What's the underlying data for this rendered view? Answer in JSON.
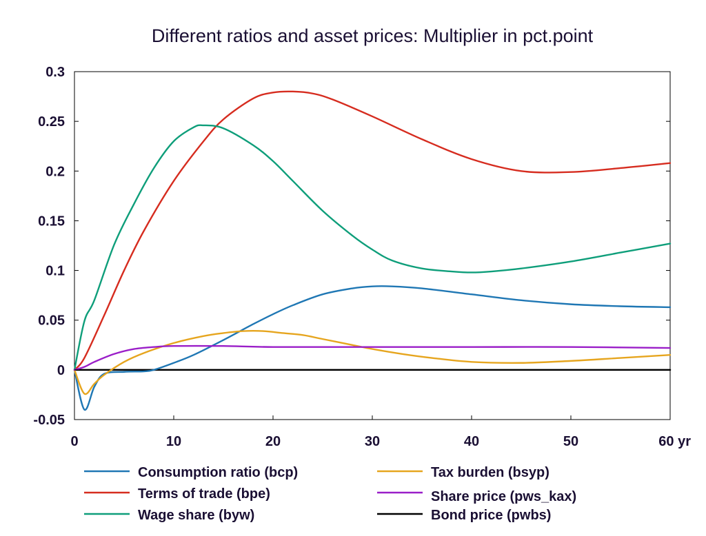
{
  "chart_data": {
    "type": "line",
    "title": "Different ratios and asset prices: Multiplier in pct.point",
    "xlabel": "",
    "ylabel": "",
    "x_unit": "yr",
    "xlim": [
      0,
      60
    ],
    "ylim": [
      -0.05,
      0.3
    ],
    "x_ticks": [
      0,
      10,
      20,
      30,
      40,
      50,
      60
    ],
    "x_tick_labels": [
      "0",
      "10",
      "20",
      "30",
      "40",
      "50",
      "60 yr"
    ],
    "y_ticks": [
      -0.05,
      0,
      0.05,
      0.1,
      0.15,
      0.2,
      0.25,
      0.3
    ],
    "y_tick_labels": [
      "-0.05",
      "0",
      "0.05",
      "0.1",
      "0.15",
      "0.2",
      "0.25",
      "0.3"
    ],
    "grid": false,
    "legend_position": "bottom",
    "series": [
      {
        "name": "Consumption ratio (bcp)",
        "color": "#1f77b4",
        "x": [
          0,
          1,
          2,
          3,
          5,
          7,
          8,
          10,
          12,
          15,
          18,
          20,
          22,
          25,
          28,
          30,
          32,
          35,
          40,
          45,
          50,
          55,
          60
        ],
        "y": [
          0,
          -0.04,
          -0.017,
          -0.004,
          -0.002,
          -0.0015,
          0.0,
          0.007,
          0.015,
          0.03,
          0.046,
          0.056,
          0.065,
          0.076,
          0.082,
          0.084,
          0.084,
          0.082,
          0.076,
          0.07,
          0.066,
          0.064,
          0.063
        ]
      },
      {
        "name": "Terms of trade (bpe)",
        "color": "#d62c1f",
        "x": [
          0,
          1,
          3,
          5,
          7,
          10,
          13,
          15,
          18,
          20,
          22,
          24,
          26,
          30,
          35,
          40,
          45,
          50,
          55,
          60
        ],
        "y": [
          0,
          0.012,
          0.055,
          0.1,
          0.14,
          0.19,
          0.23,
          0.252,
          0.273,
          0.279,
          0.28,
          0.278,
          0.272,
          0.255,
          0.232,
          0.212,
          0.2,
          0.199,
          0.203,
          0.208
        ]
      },
      {
        "name": "Wage share (byw)",
        "color": "#0e9e7a",
        "x": [
          0,
          1,
          2,
          4,
          6,
          8,
          10,
          12,
          13,
          15,
          18,
          20,
          22,
          25,
          28,
          30,
          32,
          35,
          38,
          40,
          42,
          45,
          50,
          55,
          60
        ],
        "y": [
          0,
          0.049,
          0.07,
          0.126,
          0.167,
          0.203,
          0.23,
          0.244,
          0.246,
          0.243,
          0.226,
          0.21,
          0.19,
          0.16,
          0.135,
          0.121,
          0.11,
          0.102,
          0.099,
          0.098,
          0.099,
          0.102,
          0.109,
          0.118,
          0.127
        ]
      },
      {
        "name": "Tax burden (bsyp)",
        "color": "#e6a51e",
        "x": [
          0,
          1,
          2,
          3,
          5,
          7,
          10,
          13,
          15,
          17,
          19,
          21,
          23,
          25,
          28,
          30,
          33,
          36,
          40,
          45,
          50,
          55,
          60
        ],
        "y": [
          0,
          -0.024,
          -0.014,
          -0.005,
          0.008,
          0.017,
          0.027,
          0.034,
          0.037,
          0.039,
          0.039,
          0.037,
          0.035,
          0.031,
          0.025,
          0.021,
          0.016,
          0.012,
          0.008,
          0.007,
          0.009,
          0.012,
          0.015
        ]
      },
      {
        "name": "Share price (pws_kax)",
        "color": "#9a1ec8",
        "x": [
          0,
          1,
          2,
          4,
          6,
          8,
          10,
          15,
          20,
          30,
          40,
          50,
          60
        ],
        "y": [
          0,
          0.003,
          0.008,
          0.016,
          0.021,
          0.023,
          0.024,
          0.024,
          0.023,
          0.023,
          0.023,
          0.023,
          0.022
        ]
      },
      {
        "name": "Bond price (pwbs)",
        "color": "#000000",
        "x": [
          0,
          60
        ],
        "y": [
          0,
          0
        ]
      }
    ]
  }
}
